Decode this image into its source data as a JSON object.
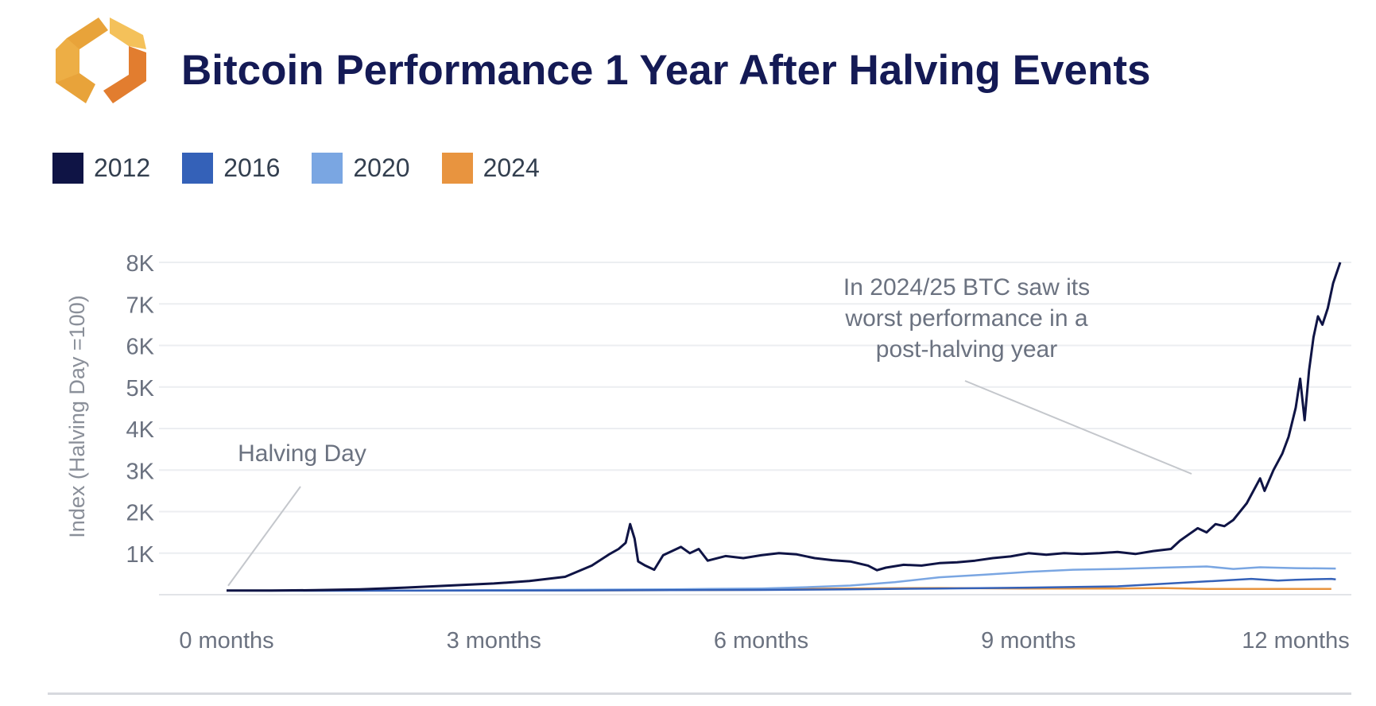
{
  "header": {
    "title": "Bitcoin Performance 1 Year After Halving Events",
    "logo_icon": "hexagon-logo-icon",
    "logo_colors": [
      "#e8a33a",
      "#e27d2f",
      "#f4c15a"
    ]
  },
  "legend": {
    "placement": "top-left",
    "items": [
      {
        "label": "2012",
        "color": "#0f1445"
      },
      {
        "label": "2016",
        "color": "#3461b8"
      },
      {
        "label": "2020",
        "color": "#7aa6e2"
      },
      {
        "label": "2024",
        "color": "#e8943f"
      }
    ]
  },
  "chart_data": {
    "type": "line",
    "title": "Bitcoin Performance 1 Year After Halving Events",
    "xlabel": "",
    "ylabel": "Index (Halving Day =100)",
    "xlim": [
      0,
      12
    ],
    "ylim": [
      0,
      8000
    ],
    "x_ticks": [
      {
        "value": 0,
        "label": "0 months"
      },
      {
        "value": 3,
        "label": "3 months"
      },
      {
        "value": 6,
        "label": "6 months"
      },
      {
        "value": 9,
        "label": "9 months"
      },
      {
        "value": 12,
        "label": "12 months"
      }
    ],
    "y_ticks": [
      {
        "value": 1000,
        "label": "1K"
      },
      {
        "value": 2000,
        "label": "2K"
      },
      {
        "value": 3000,
        "label": "3K"
      },
      {
        "value": 4000,
        "label": "4K"
      },
      {
        "value": 5000,
        "label": "5K"
      },
      {
        "value": 6000,
        "label": "6K"
      },
      {
        "value": 7000,
        "label": "7K"
      },
      {
        "value": 8000,
        "label": "8K"
      }
    ],
    "grid": {
      "horizontal": true,
      "vertical": false
    },
    "series": [
      {
        "name": "2012",
        "color": "#0f1445",
        "points": [
          [
            0,
            100
          ],
          [
            0.5,
            100
          ],
          [
            1,
            110
          ],
          [
            1.5,
            130
          ],
          [
            2,
            170
          ],
          [
            2.5,
            220
          ],
          [
            3,
            270
          ],
          [
            3.4,
            330
          ],
          [
            3.8,
            430
          ],
          [
            4.1,
            700
          ],
          [
            4.3,
            980
          ],
          [
            4.4,
            1100
          ],
          [
            4.48,
            1250
          ],
          [
            4.53,
            1700
          ],
          [
            4.58,
            1350
          ],
          [
            4.62,
            800
          ],
          [
            4.7,
            700
          ],
          [
            4.8,
            600
          ],
          [
            4.9,
            950
          ],
          [
            5.0,
            1050
          ],
          [
            5.1,
            1150
          ],
          [
            5.2,
            1000
          ],
          [
            5.3,
            1100
          ],
          [
            5.4,
            820
          ],
          [
            5.6,
            930
          ],
          [
            5.8,
            880
          ],
          [
            6.0,
            950
          ],
          [
            6.2,
            1000
          ],
          [
            6.4,
            970
          ],
          [
            6.6,
            880
          ],
          [
            6.8,
            830
          ],
          [
            7.0,
            800
          ],
          [
            7.2,
            700
          ],
          [
            7.3,
            590
          ],
          [
            7.4,
            650
          ],
          [
            7.6,
            720
          ],
          [
            7.8,
            700
          ],
          [
            8.0,
            760
          ],
          [
            8.2,
            780
          ],
          [
            8.4,
            820
          ],
          [
            8.6,
            880
          ],
          [
            8.8,
            920
          ],
          [
            9.0,
            1000
          ],
          [
            9.2,
            960
          ],
          [
            9.4,
            1000
          ],
          [
            9.6,
            980
          ],
          [
            9.8,
            1000
          ],
          [
            10.0,
            1030
          ],
          [
            10.2,
            980
          ],
          [
            10.4,
            1050
          ],
          [
            10.6,
            1100
          ],
          [
            10.7,
            1300
          ],
          [
            10.8,
            1450
          ],
          [
            10.9,
            1600
          ],
          [
            11.0,
            1500
          ],
          [
            11.1,
            1700
          ],
          [
            11.2,
            1650
          ],
          [
            11.3,
            1800
          ],
          [
            11.45,
            2200
          ],
          [
            11.6,
            2800
          ],
          [
            11.65,
            2500
          ],
          [
            11.75,
            3000
          ],
          [
            11.85,
            3400
          ],
          [
            11.92,
            3800
          ],
          [
            12.0,
            4500
          ],
          [
            12.05,
            5200
          ],
          [
            12.1,
            4200
          ],
          [
            12.15,
            5400
          ],
          [
            12.2,
            6200
          ],
          [
            12.25,
            6700
          ],
          [
            12.3,
            6500
          ],
          [
            12.36,
            6900
          ],
          [
            12.42,
            7500
          ],
          [
            12.5,
            8000
          ]
        ]
      },
      {
        "name": "2016",
        "color": "#3461b8",
        "points": [
          [
            0,
            100
          ],
          [
            1,
            95
          ],
          [
            2,
            98
          ],
          [
            3,
            100
          ],
          [
            4,
            103
          ],
          [
            5,
            110
          ],
          [
            6,
            115
          ],
          [
            7,
            130
          ],
          [
            8,
            150
          ],
          [
            9,
            170
          ],
          [
            10,
            200
          ],
          [
            10.5,
            260
          ],
          [
            11,
            320
          ],
          [
            11.5,
            380
          ],
          [
            11.8,
            340
          ],
          [
            12,
            360
          ],
          [
            12.4,
            380
          ],
          [
            12.45,
            370
          ]
        ]
      },
      {
        "name": "2020",
        "color": "#7aa6e2",
        "points": [
          [
            0,
            100
          ],
          [
            1,
            100
          ],
          [
            2,
            102
          ],
          [
            3,
            110
          ],
          [
            4,
            120
          ],
          [
            5,
            130
          ],
          [
            6,
            150
          ],
          [
            6.5,
            180
          ],
          [
            7,
            220
          ],
          [
            7.5,
            300
          ],
          [
            8,
            420
          ],
          [
            8.5,
            480
          ],
          [
            9,
            550
          ],
          [
            9.5,
            600
          ],
          [
            10,
            620
          ],
          [
            10.5,
            650
          ],
          [
            11,
            680
          ],
          [
            11.3,
            620
          ],
          [
            11.6,
            660
          ],
          [
            12,
            640
          ],
          [
            12.45,
            630
          ]
        ]
      },
      {
        "name": "2024",
        "color": "#e8943f",
        "points": [
          [
            0,
            100
          ],
          [
            2,
            100
          ],
          [
            4,
            105
          ],
          [
            5,
            110
          ],
          [
            6,
            120
          ],
          [
            6.5,
            140
          ],
          [
            7,
            150
          ],
          [
            8,
            160
          ],
          [
            9,
            150
          ],
          [
            10,
            150
          ],
          [
            10.5,
            160
          ],
          [
            11,
            140
          ],
          [
            12,
            140
          ],
          [
            12.4,
            140
          ]
        ]
      }
    ],
    "annotations": [
      {
        "text": "Halving Day",
        "lines": [
          "Halving Day"
        ],
        "points_to": [
          0,
          100
        ]
      },
      {
        "text": "In 2024/25 BTC saw its worst performance in a post-halving year",
        "lines": [
          "In 2024/25 BTC saw its",
          "worst performance in a",
          "post-halving year"
        ],
        "points_to": [
          11.2,
          140
        ]
      }
    ]
  }
}
